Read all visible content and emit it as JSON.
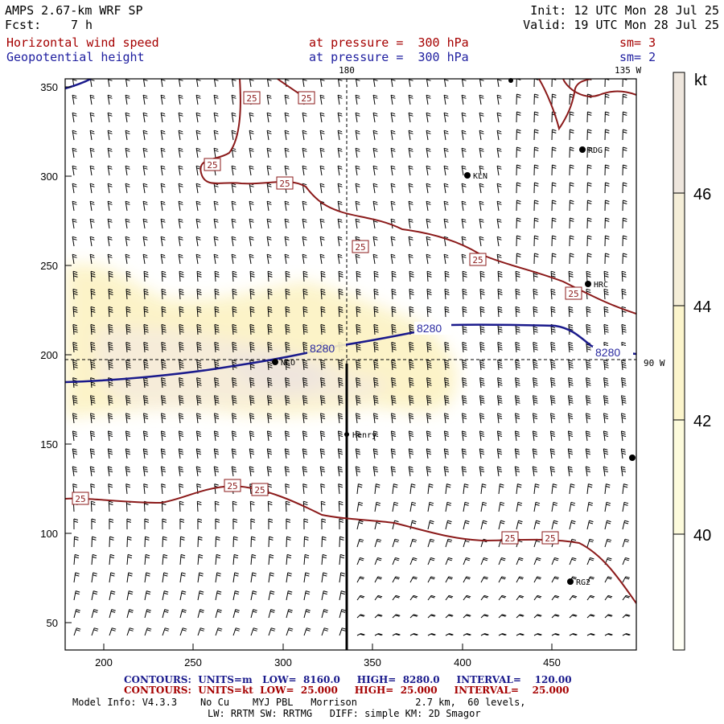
{
  "header": {
    "model": "AMPS 2.67-km WRF SP",
    "forecast_label": "Fcst:",
    "forecast_value": "7 h",
    "init": "Init: 12 UTC Mon 28 Jul 25",
    "valid": "Valid: 19 UTC Mon 28 Jul 25",
    "field1": "Horizontal wind speed",
    "field2": "Geopotential height",
    "level1": "at pressure =  300 hPa",
    "level2": "at pressure =  300 hPa",
    "smooth1": "sm= 3",
    "smooth2": "sm= 2"
  },
  "map": {
    "top_lon_label": "180",
    "top_right_label": "135 W",
    "right_lat_label": "90 W",
    "x_ticks": [
      "200",
      "250",
      "300",
      "350",
      "400",
      "450"
    ],
    "y_ticks": [
      "350",
      "300",
      "250",
      "200",
      "150",
      "100",
      "50"
    ],
    "stations": [
      "RDG",
      "KLN",
      "HRC",
      "NCO",
      "Henry",
      "RG2"
    ],
    "height_contour_label": "8280",
    "speed_contour_label": "25"
  },
  "colorbar": {
    "unit": "kt",
    "labels": [
      "46",
      "44",
      "42",
      "40"
    ],
    "colors": [
      "#fffff5",
      "#fdfbdc",
      "#fcf5cc",
      "#f5eed8",
      "#eee6dd"
    ]
  },
  "footer": {
    "contours_blue": "CONTOURS:  UNITS=m   LOW=  8160.0     HIGH=  8280.0     INTERVAL=    120.00",
    "contours_red": "CONTOURS:  UNITS=kt  LOW=  25.000     HIGH=  25.000     INTERVAL=    25.000",
    "model_info": "Model Info: V4.3.3    No Cu    MYJ PBL   Morrison          2.7 km,  60 levels,",
    "physics": "LW: RRTM SW: RRTMG   DIFF: simple KM: 2D Smagor"
  },
  "colors": {
    "height": "#1a1a8c",
    "speed": "#8b1a1a",
    "text_red": "#a50000",
    "text_blue": "#2020a0"
  }
}
